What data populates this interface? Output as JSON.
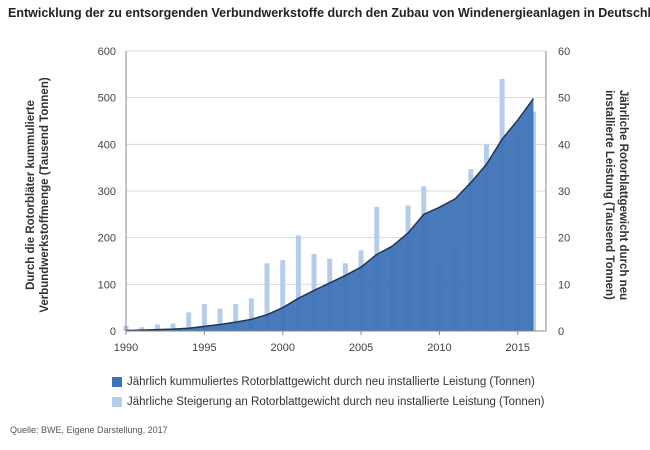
{
  "title": "Entwicklung der zu entsorgenden Verbundwerkstoffe durch den Zubau von Windenergieanlagen in Deutschland",
  "source": "Quelle: BWE, Eigene Darstellung, 2017",
  "colors": {
    "area": "#3f73b7",
    "bars": "#b6cde9",
    "axis": "#888888",
    "grid": "#d9d9d9",
    "area_edge": "#1f3557"
  },
  "chart_data": {
    "type": "bar",
    "title": "Entwicklung der zu entsorgenden Verbundwerkstoffe durch den Zubau von Windenergieanlagen in Deutschland",
    "x_ticks": [
      "1990",
      "1995",
      "2000",
      "2005",
      "2010",
      "2015"
    ],
    "x": [
      1990,
      1991,
      1992,
      1993,
      1994,
      1995,
      1996,
      1997,
      1998,
      1999,
      2000,
      2001,
      2002,
      2003,
      2004,
      2005,
      2006,
      2007,
      2008,
      2009,
      2010,
      2011,
      2012,
      2013,
      2014,
      2015,
      2016
    ],
    "y_left": {
      "label": "Durch die Rotorbläter kummulierte Verbundwerkstoffmenge (Tausend Tonnen)",
      "ticks": [
        "0",
        "100",
        "200",
        "300",
        "400",
        "500",
        "600"
      ],
      "range": [
        0,
        600
      ]
    },
    "y_right": {
      "label": "Jährliche Rotorblattgewicht durch neu installierte Leistung (Tausend Tonnen)",
      "ticks": [
        "0",
        "10",
        "20",
        "30",
        "40",
        "50",
        "60"
      ],
      "range": [
        0,
        60
      ]
    },
    "grid": true,
    "legend_position": "bottom",
    "series": [
      {
        "name": "Jährlich kummuliertes Rotorblattgewicht durch neu installierte Leistung (Tonnen)",
        "type": "area",
        "axis": "left",
        "values": [
          1,
          2,
          3,
          4,
          6,
          10,
          14,
          19,
          25,
          35,
          50,
          70,
          87,
          103,
          119,
          137,
          164,
          182,
          210,
          250,
          265,
          283,
          318,
          357,
          411,
          452,
          498
        ]
      },
      {
        "name": "Jährliche Steigerung an Rotorblattgewicht durch neu installierte Leistung (Tonnen)",
        "type": "bar",
        "axis": "right",
        "values": [
          1.1,
          0.8,
          1.4,
          1.6,
          4.0,
          5.8,
          4.8,
          5.8,
          7.0,
          14.5,
          15.2,
          20.5,
          16.5,
          15.5,
          14.5,
          17.3,
          26.6,
          17.8,
          26.9,
          31.0,
          15.2,
          18.0,
          34.7,
          40.0,
          54.0,
          41.5,
          47.0
        ]
      }
    ]
  }
}
